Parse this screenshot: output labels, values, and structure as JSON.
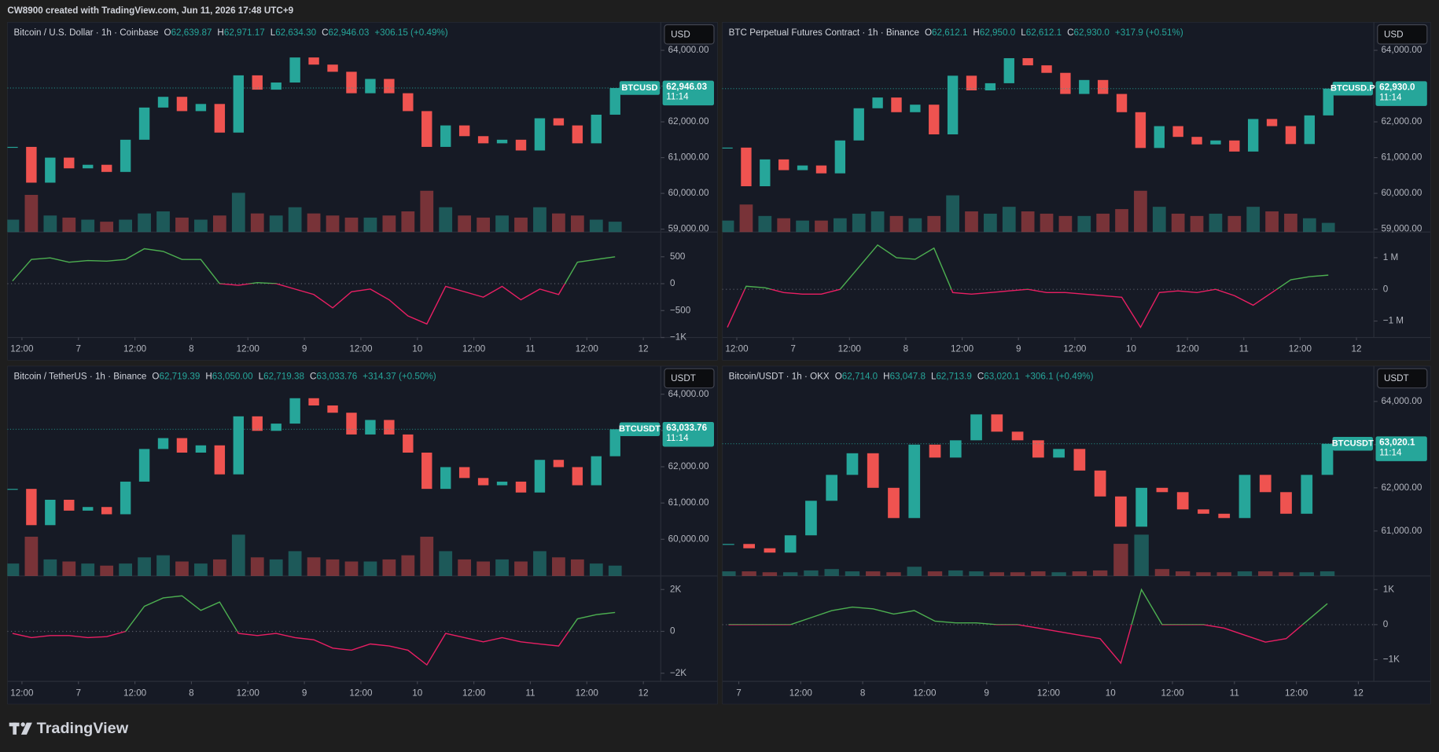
{
  "header": {
    "caption": "CW8900 created with TradingView.com, Jun 11, 2026 17:48 UTC+9"
  },
  "footer": {
    "brand": "TradingView"
  },
  "chart_data": [
    {
      "type": "candlestick",
      "title": "Bitcoin / U.S. Dollar · 1h · Coinbase",
      "ohlc": [
        {
          "label": "O",
          "value": "62,639.87"
        },
        {
          "label": "H",
          "value": "62,971.17"
        },
        {
          "label": "L",
          "value": "62,634.30"
        },
        {
          "label": "C",
          "value": "62,946.03"
        }
      ],
      "change": "+306.15 (+0.49%)",
      "currency": "USD",
      "symbol": "BTCUSD",
      "price_label": "62,946.03",
      "countdown": "11:14",
      "up_color": "#26a69a",
      "down_color": "#ef5350",
      "x": [
        10,
        14,
        18,
        22,
        26,
        30,
        34,
        38,
        42,
        46,
        50,
        54,
        58,
        62,
        66,
        70,
        74,
        78,
        82,
        86,
        90,
        94,
        98,
        102,
        106,
        110,
        114,
        118,
        122,
        126,
        130,
        134,
        138
      ],
      "close": [
        61300,
        60300,
        61000,
        60700,
        60800,
        60600,
        61500,
        62400,
        62700,
        62300,
        62500,
        61700,
        63300,
        62900,
        63100,
        63800,
        63600,
        63400,
        62800,
        63200,
        62800,
        62300,
        61300,
        61900,
        61600,
        61400,
        61500,
        61200,
        62100,
        61900,
        61400,
        62200,
        62946.03
      ],
      "volume": [
        30,
        90,
        40,
        35,
        30,
        25,
        30,
        45,
        50,
        35,
        30,
        40,
        95,
        45,
        40,
        60,
        45,
        40,
        35,
        35,
        40,
        50,
        100,
        60,
        40,
        35,
        40,
        35,
        60,
        45,
        40,
        30,
        25
      ],
      "xlim": [
        8.9,
        147.7
      ],
      "xticks": [
        {
          "value": 12,
          "label": "12:00"
        },
        {
          "value": 24,
          "label": "7"
        },
        {
          "value": 36,
          "label": "12:00"
        },
        {
          "value": 48,
          "label": "8"
        },
        {
          "value": 60,
          "label": "12:00"
        },
        {
          "value": 72,
          "label": "9"
        },
        {
          "value": 84,
          "label": "12:00"
        },
        {
          "value": 96,
          "label": "10"
        },
        {
          "value": 108,
          "label": "12:00"
        },
        {
          "value": 120,
          "label": "11"
        },
        {
          "value": 132,
          "label": "12:00"
        },
        {
          "value": 144,
          "label": "12"
        }
      ],
      "ylim": [
        58920,
        64740
      ],
      "yticks": [
        {
          "value": 59000,
          "label": "59,000.00"
        },
        {
          "value": 60000,
          "label": "60,000.00"
        },
        {
          "value": 61000,
          "label": "61,000.00"
        },
        {
          "value": 62000,
          "label": "62,000.00"
        },
        {
          "value": 63000,
          "label": "63,000.00"
        },
        {
          "value": 64000,
          "label": "64,000.00"
        }
      ],
      "indicator": {
        "values": [
          50,
          450,
          480,
          400,
          430,
          420,
          450,
          650,
          600,
          450,
          450,
          0,
          -30,
          20,
          0,
          -100,
          -200,
          -450,
          -150,
          -100,
          -300,
          -600,
          -750,
          -50,
          -150,
          -250,
          -50,
          -300,
          -100,
          -200,
          400,
          450,
          500
        ],
        "ylim": [
          -1000,
          960
        ],
        "above_color": "#4caf50",
        "below_color": "#e91e63",
        "yticks": [
          500,
          0,
          {
            "value": -500,
            "label": "−500"
          },
          {
            "value": -1000,
            "label": "−1K"
          }
        ]
      }
    },
    {
      "type": "candlestick",
      "title": "BTC Perpetual Futures Contract · 1h · Binance",
      "ohlc": [
        {
          "label": "O",
          "value": "62,612.1"
        },
        {
          "label": "H",
          "value": "62,950.0"
        },
        {
          "label": "L",
          "value": "62,612.1"
        },
        {
          "label": "C",
          "value": "62,930.0"
        }
      ],
      "change": "+317.9 (+0.51%)",
      "currency": "USD",
      "symbol": "BTCUSD.P",
      "price_label": "62,930.0",
      "countdown": "11:14",
      "up_color": "#26a69a",
      "down_color": "#ef5350",
      "x": [
        10,
        14,
        18,
        22,
        26,
        30,
        34,
        38,
        42,
        46,
        50,
        54,
        58,
        62,
        66,
        70,
        74,
        78,
        82,
        86,
        90,
        94,
        98,
        102,
        106,
        110,
        114,
        118,
        122,
        126,
        130,
        134,
        138
      ],
      "close": [
        61280,
        60200,
        60950,
        60650,
        60780,
        60560,
        61480,
        62380,
        62680,
        62270,
        62480,
        61650,
        63290,
        62880,
        63080,
        63780,
        63580,
        63370,
        62780,
        63170,
        62780,
        62270,
        61270,
        61880,
        61580,
        61370,
        61480,
        61170,
        62080,
        61880,
        61380,
        62180,
        62930.0
      ],
      "volume": [
        25,
        60,
        35,
        30,
        25,
        25,
        30,
        40,
        45,
        35,
        30,
        35,
        80,
        45,
        40,
        55,
        45,
        40,
        35,
        35,
        40,
        50,
        90,
        55,
        40,
        35,
        40,
        35,
        55,
        45,
        40,
        30,
        20
      ],
      "xlim": [
        8.9,
        147.7
      ],
      "xticks": [
        {
          "value": 12,
          "label": "12:00"
        },
        {
          "value": 24,
          "label": "7"
        },
        {
          "value": 36,
          "label": "12:00"
        },
        {
          "value": 48,
          "label": "8"
        },
        {
          "value": 60,
          "label": "12:00"
        },
        {
          "value": 72,
          "label": "9"
        },
        {
          "value": 84,
          "label": "12:00"
        },
        {
          "value": 96,
          "label": "10"
        },
        {
          "value": 108,
          "label": "12:00"
        },
        {
          "value": 120,
          "label": "11"
        },
        {
          "value": 132,
          "label": "12:00"
        },
        {
          "value": 144,
          "label": "12"
        }
      ],
      "ylim": [
        58920,
        64740
      ],
      "yticks": [
        {
          "value": 59000,
          "label": "59,000.00"
        },
        {
          "value": 60000,
          "label": "60,000.00"
        },
        {
          "value": 61000,
          "label": "61,000.00"
        },
        {
          "value": 62000,
          "label": "62,000.00"
        },
        {
          "value": 63000,
          "label": "63,000.00"
        },
        {
          "value": 64000,
          "label": "64,000.00"
        }
      ],
      "indicator": {
        "values": [
          -1200000,
          100000,
          50000,
          -100000,
          -150000,
          -150000,
          0,
          700000,
          1400000,
          1000000,
          950000,
          1300000,
          -100000,
          -150000,
          -100000,
          -50000,
          0,
          -100000,
          -100000,
          -150000,
          -200000,
          -250000,
          -1200000,
          -100000,
          -50000,
          -100000,
          0,
          -200000,
          -500000,
          -100000,
          300000,
          400000,
          450000
        ],
        "ylim": [
          -1520000,
          1810000
        ],
        "above_color": "#4caf50",
        "below_color": "#e91e63",
        "yticks": [
          {
            "value": 1000000,
            "label": "1 M"
          },
          0,
          {
            "value": -1000000,
            "label": "−1 M"
          }
        ]
      }
    },
    {
      "type": "candlestick",
      "title": "Bitcoin / TetherUS · 1h · Binance",
      "ohlc": [
        {
          "label": "O",
          "value": "62,719.39"
        },
        {
          "label": "H",
          "value": "63,050.00"
        },
        {
          "label": "L",
          "value": "62,719.38"
        },
        {
          "label": "C",
          "value": "63,033.76"
        }
      ],
      "change": "+314.37 (+0.50%)",
      "currency": "USDT",
      "symbol": "BTCUSDT",
      "price_label": "63,033.76",
      "countdown": "11:14",
      "up_color": "#26a69a",
      "down_color": "#ef5350",
      "x": [
        10,
        14,
        18,
        22,
        26,
        30,
        34,
        38,
        42,
        46,
        50,
        54,
        58,
        62,
        66,
        70,
        74,
        78,
        82,
        86,
        90,
        94,
        98,
        102,
        106,
        110,
        114,
        118,
        122,
        126,
        130,
        134,
        138
      ],
      "close": [
        61390,
        60390,
        61090,
        60790,
        60890,
        60690,
        61590,
        62490,
        62790,
        62390,
        62590,
        61790,
        63390,
        62990,
        63190,
        63890,
        63690,
        63490,
        62890,
        63290,
        62890,
        62390,
        61390,
        61990,
        61690,
        61490,
        61590,
        61290,
        62190,
        61990,
        61490,
        62290,
        63033.76
      ],
      "volume": [
        30,
        95,
        40,
        35,
        30,
        25,
        30,
        45,
        50,
        35,
        30,
        40,
        100,
        45,
        40,
        60,
        45,
        40,
        35,
        35,
        40,
        50,
        95,
        60,
        40,
        35,
        40,
        35,
        60,
        45,
        40,
        30,
        25
      ],
      "xlim": [
        8.9,
        147.7
      ],
      "xticks": [
        {
          "value": 12,
          "label": "12:00"
        },
        {
          "value": 24,
          "label": "7"
        },
        {
          "value": 36,
          "label": "12:00"
        },
        {
          "value": 48,
          "label": "8"
        },
        {
          "value": 60,
          "label": "12:00"
        },
        {
          "value": 72,
          "label": "9"
        },
        {
          "value": 84,
          "label": "12:00"
        },
        {
          "value": 96,
          "label": "10"
        },
        {
          "value": 108,
          "label": "12:00"
        },
        {
          "value": 120,
          "label": "11"
        },
        {
          "value": 132,
          "label": "12:00"
        },
        {
          "value": 144,
          "label": "12"
        }
      ],
      "ylim": [
        58990,
        64730
      ],
      "yticks": [
        {
          "value": 60000,
          "label": "60,000.00"
        },
        {
          "value": 61000,
          "label": "61,000.00"
        },
        {
          "value": 62000,
          "label": "62,000.00"
        },
        {
          "value": 63000,
          "label": "63,000.00"
        },
        {
          "value": 64000,
          "label": "64,000.00"
        }
      ],
      "indicator": {
        "values": [
          -100,
          -300,
          -200,
          -200,
          -300,
          -250,
          0,
          1200,
          1600,
          1700,
          1000,
          1400,
          -100,
          -200,
          -100,
          -300,
          -400,
          -800,
          -900,
          -600,
          -700,
          -900,
          -1600,
          -100,
          -300,
          -500,
          -300,
          -500,
          -600,
          -700,
          600,
          800,
          900
        ],
        "ylim": [
          -2390,
          2650
        ],
        "above_color": "#4caf50",
        "below_color": "#e91e63",
        "yticks": [
          {
            "value": 2000,
            "label": "2K"
          },
          0,
          {
            "value": -2000,
            "label": "−2K"
          }
        ]
      }
    },
    {
      "type": "candlestick",
      "title": "Bitcoin/USDT · 1h · OKX",
      "ohlc": [
        {
          "label": "O",
          "value": "62,714.0"
        },
        {
          "label": "H",
          "value": "63,047.8"
        },
        {
          "label": "L",
          "value": "62,713.9"
        },
        {
          "label": "C",
          "value": "63,020.1"
        }
      ],
      "change": "+306.1 (+0.49%)",
      "currency": "USDT",
      "symbol": "BTCUSDT",
      "price_label": "63,020.1",
      "countdown": "11:14",
      "up_color": "#26a69a",
      "down_color": "#ef5350",
      "x": [
        22,
        26,
        30,
        34,
        38,
        42,
        46,
        50,
        54,
        58,
        62,
        66,
        70,
        74,
        78,
        82,
        86,
        90,
        94,
        98,
        102,
        106,
        110,
        114,
        118,
        122,
        126,
        130,
        134,
        138
      ],
      "close": [
        60700,
        60600,
        60500,
        60900,
        61700,
        62300,
        62800,
        62000,
        61300,
        63000,
        62700,
        63100,
        63700,
        63300,
        63100,
        62700,
        62900,
        62400,
        61800,
        61100,
        62000,
        61900,
        61500,
        61400,
        61300,
        62300,
        61900,
        61400,
        62300,
        63020.1
      ],
      "volume": [
        10,
        10,
        8,
        8,
        12,
        15,
        10,
        10,
        8,
        20,
        10,
        12,
        10,
        8,
        8,
        10,
        8,
        10,
        12,
        70,
        90,
        15,
        10,
        8,
        8,
        10,
        10,
        8,
        8,
        10
      ],
      "xlim": [
        20.8,
        147
      ],
      "xticks": [
        {
          "value": 24,
          "label": "7"
        },
        {
          "value": 36,
          "label": "12:00"
        },
        {
          "value": 48,
          "label": "8"
        },
        {
          "value": 60,
          "label": "12:00"
        },
        {
          "value": 72,
          "label": "9"
        },
        {
          "value": 84,
          "label": "12:00"
        },
        {
          "value": 96,
          "label": "10"
        },
        {
          "value": 108,
          "label": "12:00"
        },
        {
          "value": 120,
          "label": "11"
        },
        {
          "value": 132,
          "label": "12:00"
        },
        {
          "value": 144,
          "label": "12"
        }
      ],
      "ylim": [
        59960,
        64780
      ],
      "yticks": [
        {
          "value": 61000,
          "label": "61,000.00"
        },
        {
          "value": 62000,
          "label": "62,000.00"
        },
        {
          "value": 63000,
          "label": "63,000.00"
        },
        {
          "value": 64000,
          "label": "64,000.00"
        }
      ],
      "indicator": {
        "values": [
          0,
          0,
          0,
          0,
          200,
          400,
          500,
          450,
          300,
          400,
          100,
          50,
          50,
          0,
          0,
          -100,
          -200,
          -300,
          -400,
          -1100,
          1000,
          0,
          0,
          0,
          -100,
          -300,
          -500,
          -400,
          100,
          600
        ],
        "ylim": [
          -1620,
          1390
        ],
        "above_color": "#4caf50",
        "below_color": "#e91e63",
        "yticks": [
          {
            "value": 1000,
            "label": "1K"
          },
          0,
          {
            "value": -1000,
            "label": "−1K"
          }
        ]
      }
    }
  ]
}
